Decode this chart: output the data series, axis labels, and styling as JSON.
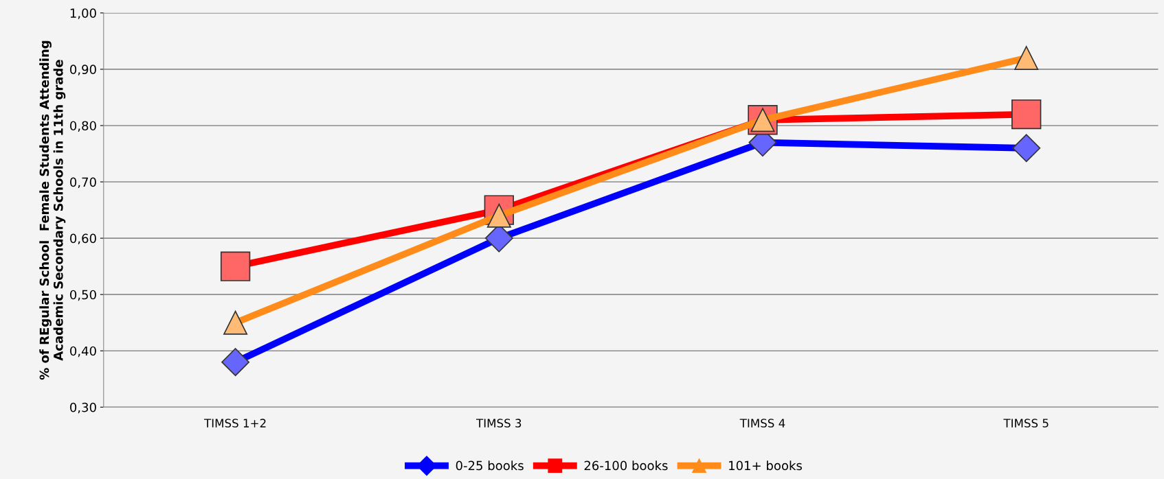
{
  "chart_data": {
    "type": "line",
    "ylabel": "% of REgular School  Female Students Attending\nAcademic Secondary Schools in 11th grade",
    "categories": [
      "TIMSS 1+2",
      "TIMSS 3",
      "TIMSS 4",
      "TIMSS 5"
    ],
    "series": [
      {
        "name": "0-25 books",
        "color": "#0000ff",
        "marker": "diamond",
        "values": [
          0.38,
          0.6,
          0.77,
          0.76
        ]
      },
      {
        "name": "26-100 books",
        "color": "#ff0000",
        "marker": "square",
        "values": [
          0.55,
          0.65,
          0.81,
          0.82
        ]
      },
      {
        "name": "101+ books",
        "color": "#ff8c1a",
        "marker": "triangle",
        "values": [
          0.45,
          0.64,
          0.81,
          0.92
        ]
      }
    ],
    "ylim": [
      0.3,
      1.0
    ],
    "yticks": [
      {
        "value": 0.3,
        "label": "0,30"
      },
      {
        "value": 0.4,
        "label": "0,40"
      },
      {
        "value": 0.5,
        "label": "0,50"
      },
      {
        "value": 0.6,
        "label": "0,60"
      },
      {
        "value": 0.7,
        "label": "0,70"
      },
      {
        "value": 0.8,
        "label": "0,80"
      },
      {
        "value": 0.9,
        "label": "0,90"
      },
      {
        "value": 1.0,
        "label": "1,00"
      }
    ],
    "grid": "y",
    "legend": "bottom",
    "line_style": "solid"
  }
}
